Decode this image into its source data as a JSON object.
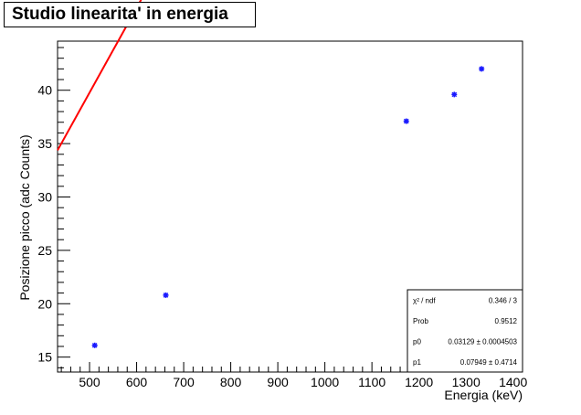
{
  "chart_data": {
    "type": "scatter",
    "title": "Studio linearita' in energia",
    "xlabel": "Energia (keV)",
    "ylabel": "Posizione picco (adc Counts)",
    "xlim": [
      432,
      1420
    ],
    "ylim": [
      13.6,
      44.6
    ],
    "x_major_ticks": [
      500,
      600,
      700,
      800,
      900,
      1000,
      1100,
      1200,
      1300,
      1400
    ],
    "x_minor_step": 20,
    "y_major_ticks": [
      15,
      20,
      25,
      30,
      35,
      40
    ],
    "y_minor_step": 1,
    "grid": false,
    "legend": "none",
    "series": [
      {
        "marker_color": "#1a1aff",
        "points": [
          {
            "x": 511,
            "y": 16.1
          },
          {
            "x": 662,
            "y": 20.8
          },
          {
            "x": 1173,
            "y": 37.1
          },
          {
            "x": 1275,
            "y": 39.6
          },
          {
            "x": 1333,
            "y": 42.0
          }
        ]
      }
    ],
    "fit": {
      "color": "#ff0000",
      "p0": 0.03129,
      "p1": 0.07949,
      "x_range": [
        432,
        1420
      ]
    },
    "stats_box": {
      "rows": [
        {
          "label": "χ² / ndf",
          "value": "0.346 / 3"
        },
        {
          "label": "Prob",
          "value": "0.9512"
        },
        {
          "label": "p0",
          "value": "0.03129 ± 0.0004503"
        },
        {
          "label": "p1",
          "value": "0.07949 ± 0.4714"
        }
      ]
    }
  }
}
